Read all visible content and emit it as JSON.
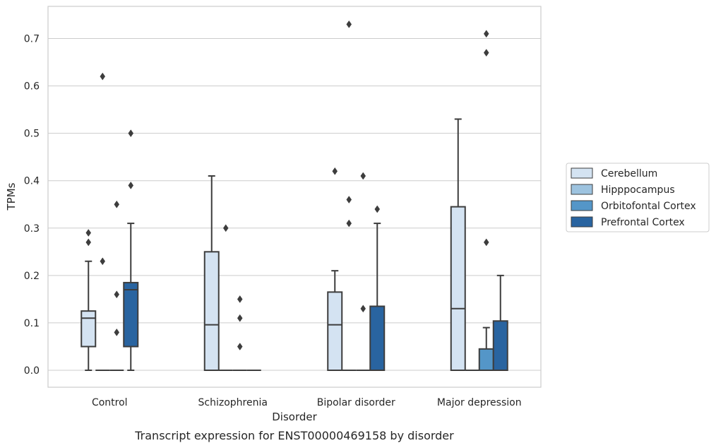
{
  "chart_data": {
    "type": "box",
    "caption": "Transcript expression for ENST00000469158 by disorder",
    "xlabel": "Disorder",
    "ylabel": "TPMs",
    "ylim": [
      -0.036,
      0.768
    ],
    "yticks": [
      0.0,
      0.1,
      0.2,
      0.3,
      0.4,
      0.5,
      0.6,
      0.7
    ],
    "ytick_labels": [
      "0.0",
      "0.1",
      "0.2",
      "0.3",
      "0.4",
      "0.5",
      "0.6",
      "0.7"
    ],
    "grid": "y",
    "legend_position": "right",
    "categories": [
      "Control",
      "Schizophrenia",
      "Bipolar disorder",
      "Major depression"
    ],
    "series": [
      {
        "name": "Cerebellum",
        "color": "#d4e3f2",
        "boxes": [
          {
            "q1": 0.05,
            "median": 0.11,
            "q3": 0.125,
            "whisker_low": 0.0,
            "whisker_high": 0.23,
            "outliers": [
              0.27,
              0.29
            ]
          },
          {
            "q1": 0.0,
            "median": 0.096,
            "q3": 0.25,
            "whisker_low": 0.0,
            "whisker_high": 0.41,
            "outliers": []
          },
          {
            "q1": 0.0,
            "median": 0.096,
            "q3": 0.165,
            "whisker_low": 0.0,
            "whisker_high": 0.21,
            "outliers": [
              0.42
            ]
          },
          {
            "q1": 0.0,
            "median": 0.13,
            "q3": 0.345,
            "whisker_low": 0.0,
            "whisker_high": 0.53,
            "outliers": []
          }
        ]
      },
      {
        "name": "Hipppocampus",
        "color": "#9dc3df",
        "boxes": [
          {
            "q1": 0.0,
            "median": 0.0,
            "q3": 0.0,
            "whisker_low": 0.0,
            "whisker_high": 0.0,
            "outliers": [
              0.23,
              0.62
            ]
          },
          {
            "q1": 0.0,
            "median": 0.0,
            "q3": 0.0,
            "whisker_low": 0.0,
            "whisker_high": 0.0,
            "outliers": [
              0.3
            ]
          },
          {
            "q1": 0.0,
            "median": 0.0,
            "q3": 0.0,
            "whisker_low": 0.0,
            "whisker_high": 0.0,
            "outliers": [
              0.31,
              0.36,
              0.73
            ]
          },
          {
            "q1": 0.0,
            "median": 0.0,
            "q3": 0.0,
            "whisker_low": 0.0,
            "whisker_high": 0.0,
            "outliers": []
          }
        ]
      },
      {
        "name": "Orbitofontal Cortex",
        "color": "#5496c8",
        "boxes": [
          {
            "q1": 0.0,
            "median": 0.0,
            "q3": 0.0,
            "whisker_low": 0.0,
            "whisker_high": 0.0,
            "outliers": [
              0.08,
              0.16,
              0.35
            ]
          },
          {
            "q1": 0.0,
            "median": 0.0,
            "q3": 0.0,
            "whisker_low": 0.0,
            "whisker_high": 0.0,
            "outliers": [
              0.05,
              0.11,
              0.15
            ]
          },
          {
            "q1": 0.0,
            "median": 0.0,
            "q3": 0.0,
            "whisker_low": 0.0,
            "whisker_high": 0.0,
            "outliers": [
              0.13,
              0.41
            ]
          },
          {
            "q1": 0.0,
            "median": 0.0,
            "q3": 0.045,
            "whisker_low": 0.0,
            "whisker_high": 0.09,
            "outliers": [
              0.27,
              0.67,
              0.71
            ]
          }
        ]
      },
      {
        "name": "Prefrontal Cortex",
        "color": "#2964a0",
        "boxes": [
          {
            "q1": 0.05,
            "median": 0.17,
            "q3": 0.185,
            "whisker_low": 0.0,
            "whisker_high": 0.31,
            "outliers": [
              0.39,
              0.5
            ]
          },
          {
            "q1": 0.0,
            "median": 0.0,
            "q3": 0.0,
            "whisker_low": 0.0,
            "whisker_high": 0.0,
            "outliers": []
          },
          {
            "q1": 0.0,
            "median": 0.0,
            "q3": 0.135,
            "whisker_low": 0.0,
            "whisker_high": 0.31,
            "outliers": [
              0.34
            ]
          },
          {
            "q1": 0.0,
            "median": 0.0,
            "q3": 0.104,
            "whisker_low": 0.0,
            "whisker_high": 0.2,
            "outliers": []
          }
        ]
      }
    ]
  }
}
